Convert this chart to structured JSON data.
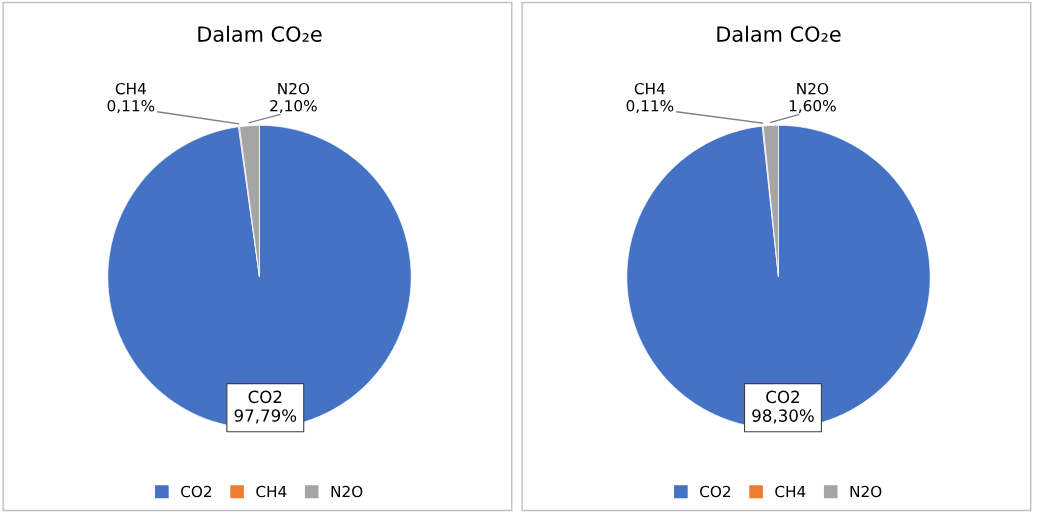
{
  "chart_data": [
    {
      "type": "pie",
      "title": "Dalam CO₂e",
      "categories": [
        "CO2",
        "CH4",
        "N2O"
      ],
      "values": [
        97.79,
        0.11,
        2.1
      ],
      "colors": [
        "#4472c4",
        "#ed7d31",
        "#a5a5a5"
      ],
      "value_labels": [
        "CO2\n97,79%",
        "CH4\n0,11%",
        "N2O\n2,10%"
      ],
      "legend": "bottom"
    },
    {
      "type": "pie",
      "title": "Dalam CO₂e",
      "categories": [
        "CO2",
        "CH4",
        "N2O"
      ],
      "values": [
        98.3,
        0.11,
        1.6
      ],
      "colors": [
        "#4472c4",
        "#ed7d31",
        "#a5a5a5"
      ],
      "value_labels": [
        "CO2\n98,30%",
        "CH4\n0,11%",
        "N2O\n1,60%"
      ],
      "legend": "bottom"
    }
  ]
}
